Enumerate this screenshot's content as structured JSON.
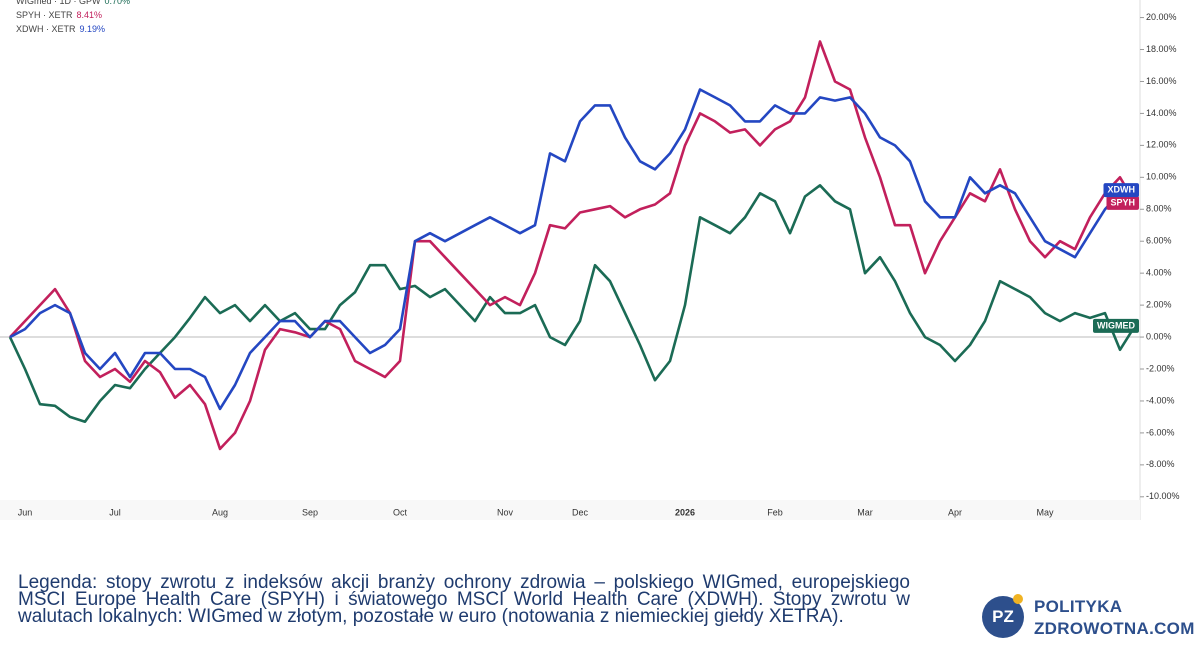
{
  "chart_data": {
    "type": "line",
    "categories": [
      null,
      "Jun",
      null,
      null,
      null,
      null,
      null,
      "Jul",
      null,
      null,
      null,
      null,
      null,
      null,
      "Aug",
      null,
      null,
      null,
      null,
      null,
      "Sep",
      null,
      null,
      null,
      null,
      null,
      "Oct",
      null,
      null,
      null,
      null,
      null,
      null,
      "Nov",
      null,
      null,
      null,
      null,
      "Dec",
      null,
      null,
      null,
      null,
      null,
      null,
      "2026",
      null,
      null,
      null,
      null,
      null,
      "Feb",
      null,
      null,
      null,
      null,
      null,
      "Mar",
      null,
      null,
      null,
      null,
      null,
      "Apr",
      null,
      null,
      null,
      null,
      null,
      "May",
      null,
      null,
      null,
      null,
      null,
      null
    ],
    "series": [
      {
        "name": "WIGmed · 1D · GPW",
        "legend_value": "0.70%",
        "end_label": "WIGMED",
        "color": "#1b6b55",
        "values": [
          0,
          -2,
          -4.2,
          -4.3,
          -5,
          -5.3,
          -4,
          -3,
          -3.2,
          -2,
          -1,
          0,
          1.2,
          2.5,
          1.5,
          2,
          1,
          2,
          1,
          1.5,
          0.5,
          0.5,
          2,
          2.8,
          4.5,
          4.5,
          3,
          3.2,
          2.5,
          3,
          2,
          1,
          2.5,
          1.5,
          1.5,
          2,
          0,
          -0.5,
          1,
          4.5,
          3.5,
          1.5,
          -0.5,
          -2.7,
          -1.5,
          2,
          7.5,
          7,
          6.5,
          7.5,
          9,
          8.5,
          6.5,
          8.8,
          9.5,
          8.5,
          8,
          4,
          5,
          3.5,
          1.5,
          0,
          -0.5,
          -1.5,
          -0.5,
          1,
          3.5,
          3,
          2.5,
          1.5,
          1,
          1.5,
          1.2,
          1.5,
          -0.8,
          0.7
        ]
      },
      {
        "name": "SPYH · XETR",
        "legend_value": "8.41%",
        "end_label": "SPYH",
        "color": "#c2205c",
        "values": [
          0,
          1,
          2,
          3,
          1.5,
          -1.5,
          -2.5,
          -2,
          -2.8,
          -1.5,
          -2.2,
          -3.8,
          -3,
          -4.2,
          -7,
          -6,
          -4,
          -0.8,
          0.5,
          0.3,
          0,
          1,
          0.5,
          -1.5,
          -2,
          -2.5,
          -1.5,
          6,
          6,
          5,
          4,
          3,
          2,
          2.5,
          2,
          4,
          7,
          6.8,
          7.8,
          8,
          8.2,
          7.5,
          8,
          8.3,
          9,
          12,
          14,
          13.5,
          12.8,
          13,
          12,
          13,
          13.5,
          15,
          18.5,
          16,
          15.5,
          12.5,
          10,
          7,
          7,
          4,
          6,
          7.5,
          9,
          8.5,
          10.5,
          8,
          6,
          5,
          6,
          5.5,
          7.5,
          9,
          10,
          8.4
        ]
      },
      {
        "name": "XDWH · XETR",
        "legend_value": "9.19%",
        "end_label": "XDWH",
        "color": "#2447c2",
        "values": [
          0,
          0.5,
          1.5,
          2,
          1.5,
          -1,
          -2,
          -1,
          -2.5,
          -1,
          -1,
          -2,
          -2,
          -2.5,
          -4.5,
          -3,
          -1,
          0,
          1,
          1,
          0,
          1,
          1,
          0,
          -1,
          -0.5,
          0.5,
          6,
          6.5,
          6,
          6.5,
          7,
          7.5,
          7,
          6.5,
          7,
          11.5,
          11,
          13.5,
          14.5,
          14.5,
          12.5,
          11,
          10.5,
          11.5,
          13,
          15.5,
          15,
          14.5,
          13.5,
          13.5,
          14.5,
          14,
          14,
          15,
          14.8,
          15,
          14,
          12.5,
          12,
          11,
          8.5,
          7.5,
          7.5,
          10,
          9,
          9.5,
          9,
          7.5,
          6,
          5.5,
          5,
          6.5,
          8,
          9,
          9.2
        ]
      }
    ],
    "ylim": [
      -10.2,
      21.1
    ],
    "yticks": [
      {
        "value": 20,
        "label": "20.00%"
      },
      {
        "value": 18,
        "label": "18.00%"
      },
      {
        "value": 16,
        "label": "16.00%"
      },
      {
        "value": 14,
        "label": "14.00%"
      },
      {
        "value": 12,
        "label": "12.00%"
      },
      {
        "value": 10,
        "label": "10.00%"
      },
      {
        "value": 8,
        "label": "8.00%"
      },
      {
        "value": 6,
        "label": "6.00%"
      },
      {
        "value": 4,
        "label": "4.00%"
      },
      {
        "value": 2,
        "label": "2.00%"
      },
      {
        "value": 0,
        "label": "0.00%"
      },
      {
        "value": -2,
        "label": "-2.00%"
      },
      {
        "value": -4,
        "label": "-4.00%"
      },
      {
        "value": -6,
        "label": "-6.00%"
      },
      {
        "value": -8,
        "label": "-8.00%"
      },
      {
        "value": -10,
        "label": "-10.00%"
      }
    ],
    "zero_line": true
  },
  "caption": "Legenda: stopy zwrotu z indeksów akcji branży ochrony zdrowia – polskiego WIGmed, europejskiego MSCI Europe Health Care (SPYH) i światowego MSCI World Health Care (XDWH). Stopy zwrotu w walutach lokalnych: WIGmed w złotym, pozostałe w euro (notowania z niemieckiej giełdy XETRA).",
  "logo": {
    "badge": "PZ",
    "line1": "POLITYKA",
    "line2": "ZDROWOTNA.COM"
  }
}
